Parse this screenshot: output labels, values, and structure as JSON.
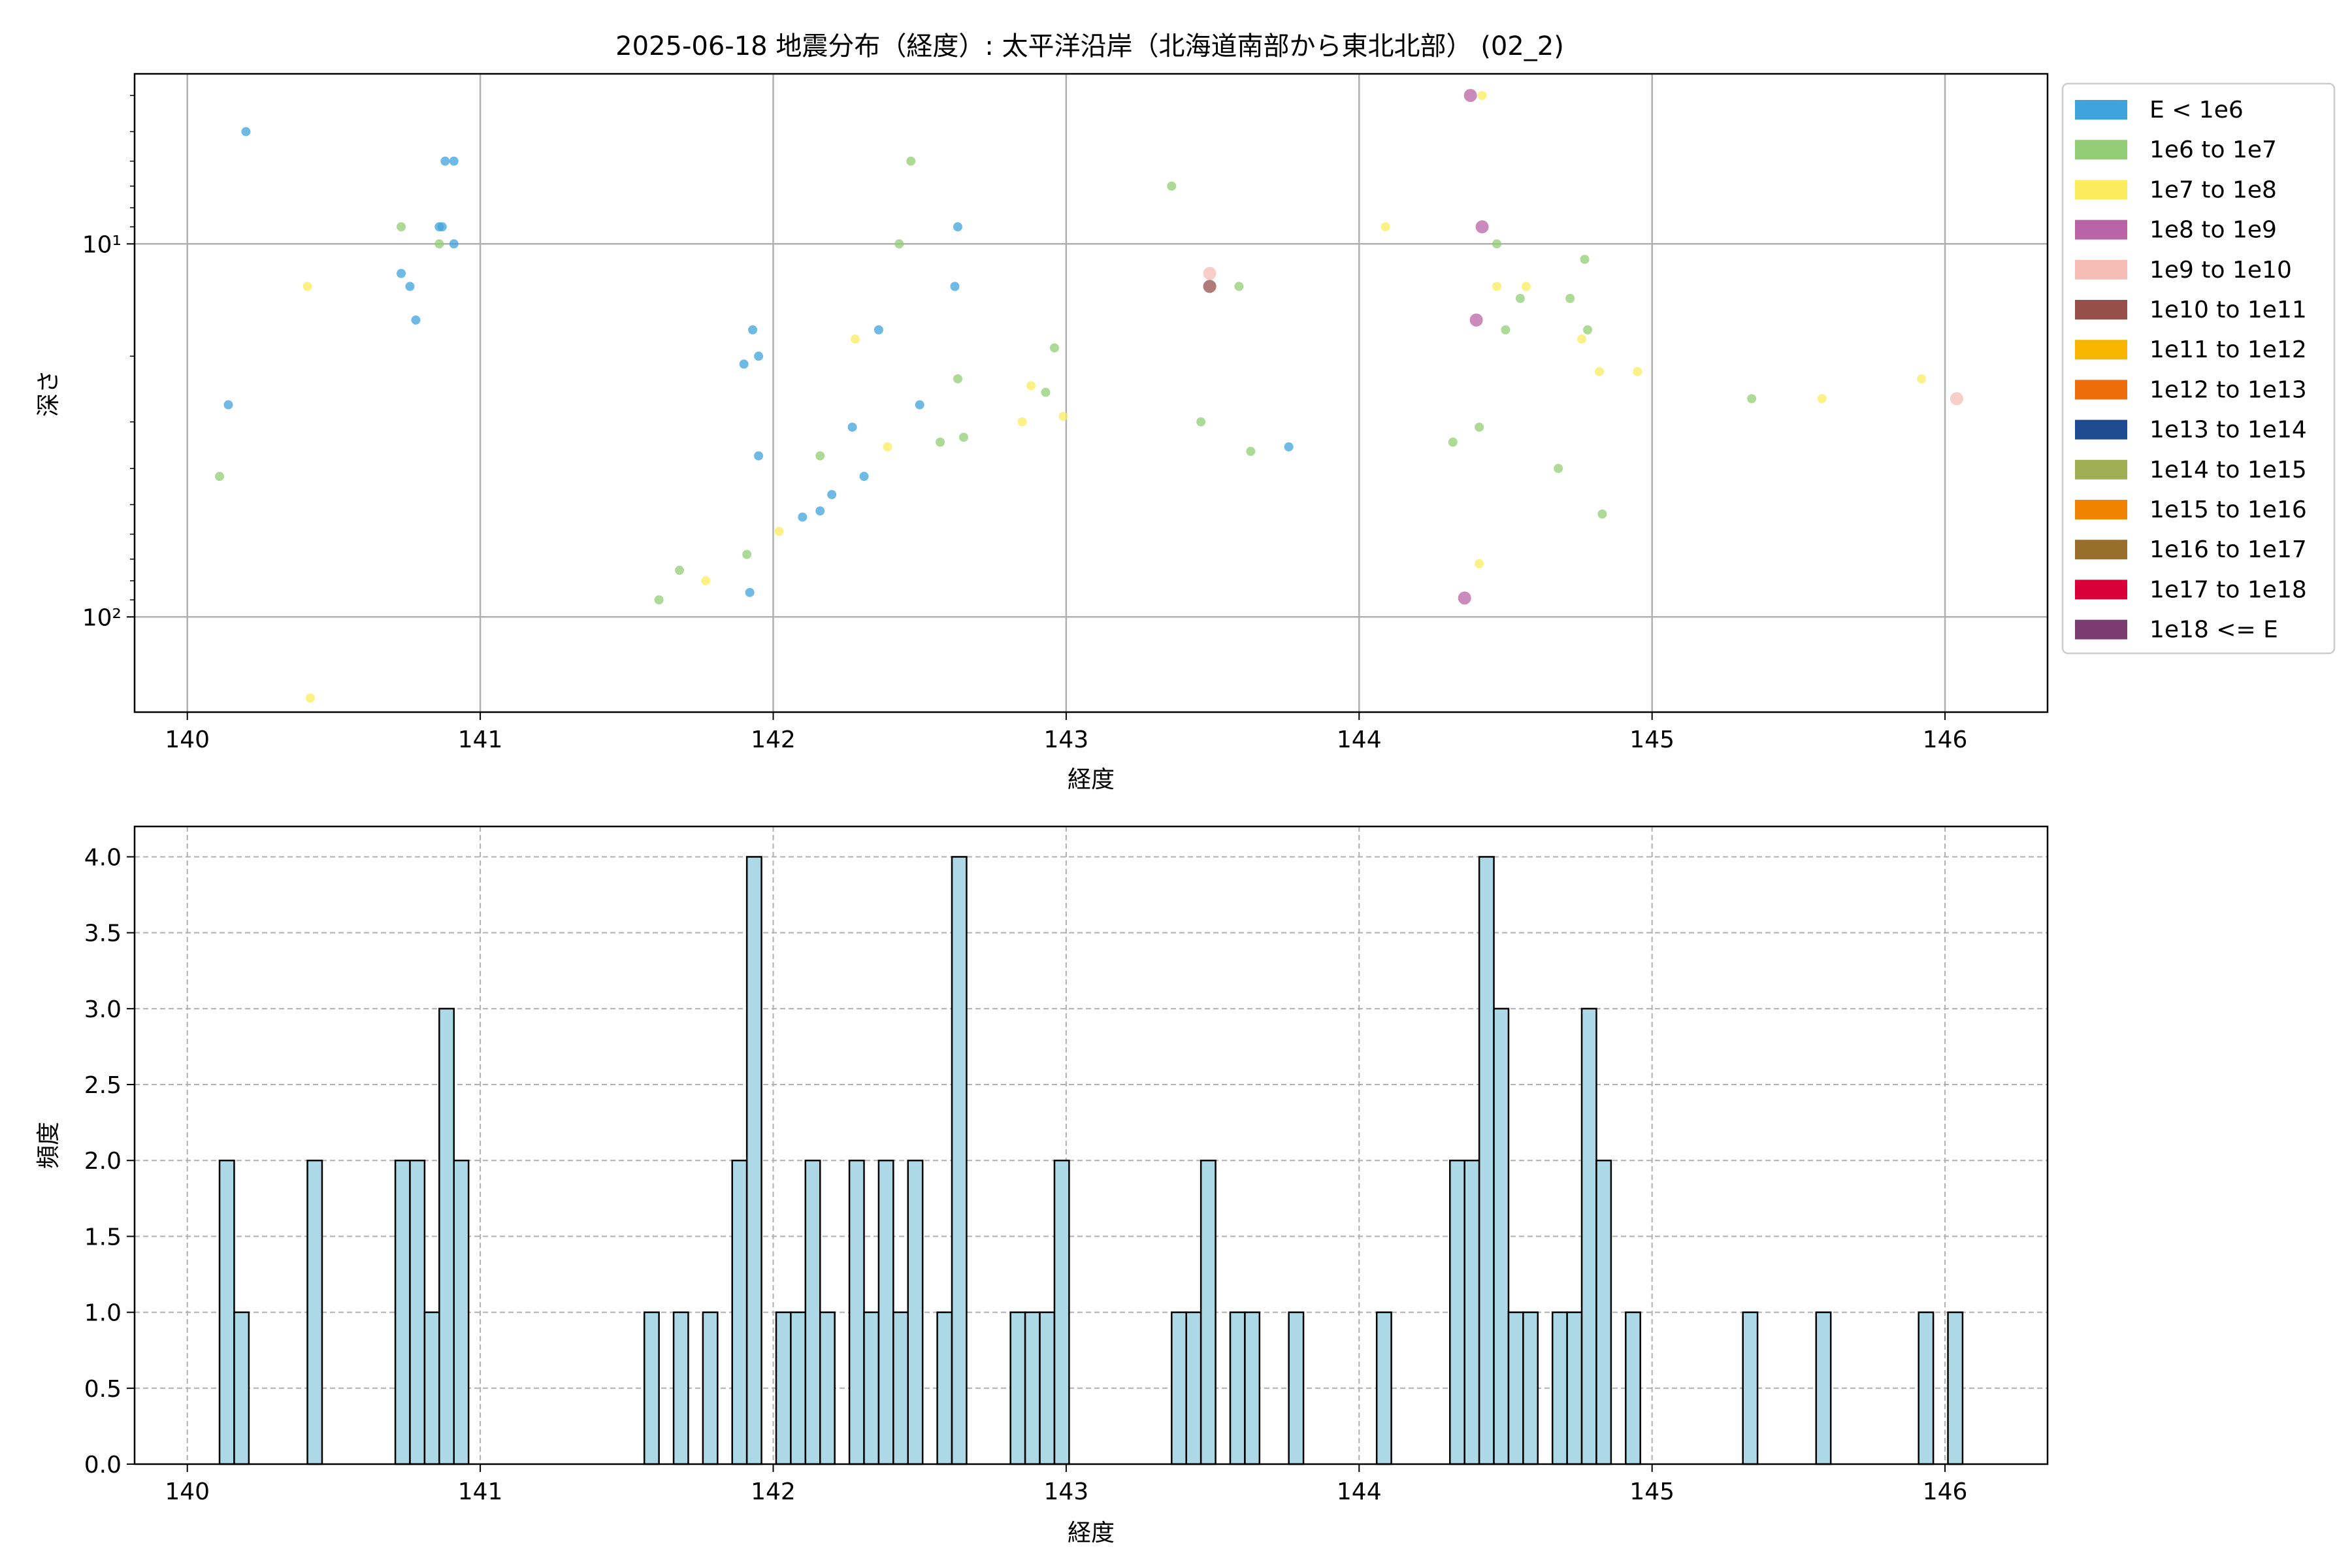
{
  "figure": {
    "title": "2025-06-18 地震分布（経度）: 太平洋沿岸（北海道南部から東北北部） (02_2)"
  },
  "chart_data": [
    {
      "type": "scatter",
      "xlabel": "経度",
      "ylabel": "深さ",
      "xlim": [
        139.82,
        146.35
      ],
      "ylim_log": [
        180,
        3.5
      ],
      "y_scale": "log",
      "y_inverted": true,
      "x_ticks": [
        140,
        141,
        142,
        143,
        144,
        145,
        146
      ],
      "x_tick_labels": [
        "140",
        "141",
        "142",
        "143",
        "144",
        "145",
        "146"
      ],
      "y_major_ticks": [
        10,
        100
      ],
      "y_tick_labels": [
        "10¹",
        "10²"
      ],
      "grid": true,
      "legend_position": "outside-right",
      "legend": [
        {
          "label": "E < 1e6",
          "color": "#3fa3dc"
        },
        {
          "label": "1e6 to 1e7",
          "color": "#93cd76"
        },
        {
          "label": "1e7 to 1e8",
          "color": "#fbec5d"
        },
        {
          "label": "1e8 to 1e9",
          "color": "#b864a6"
        },
        {
          "label": "1e9 to 1e10",
          "color": "#f5bdb5"
        },
        {
          "label": "1e10 to 1e11",
          "color": "#964f4b"
        },
        {
          "label": "1e11 to 1e12",
          "color": "#f8b500"
        },
        {
          "label": "1e12 to 1e13",
          "color": "#ed6d0a"
        },
        {
          "label": "1e13 to 1e14",
          "color": "#1d4a91"
        },
        {
          "label": "1e14 to 1e15",
          "color": "#9fae52"
        },
        {
          "label": "1e15 to 1e16",
          "color": "#f08300"
        },
        {
          "label": "1e16 to 1e17",
          "color": "#976e2c"
        },
        {
          "label": "1e17 to 1e18",
          "color": "#d9003a"
        },
        {
          "label": "1e18 <= E",
          "color": "#7a3c70"
        }
      ],
      "points": [
        {
          "x": 140.2,
          "y": 5.0,
          "c": 0
        },
        {
          "x": 140.14,
          "y": 27,
          "c": 0
        },
        {
          "x": 140.73,
          "y": 12,
          "c": 0
        },
        {
          "x": 140.76,
          "y": 13,
          "c": 0
        },
        {
          "x": 140.78,
          "y": 16,
          "c": 0
        },
        {
          "x": 140.86,
          "y": 9,
          "c": 0
        },
        {
          "x": 140.87,
          "y": 9,
          "c": 0
        },
        {
          "x": 140.88,
          "y": 6,
          "c": 0
        },
        {
          "x": 140.91,
          "y": 6,
          "c": 0
        },
        {
          "x": 140.91,
          "y": 10,
          "c": 0
        },
        {
          "x": 141.9,
          "y": 21,
          "c": 0
        },
        {
          "x": 141.93,
          "y": 17,
          "c": 0
        },
        {
          "x": 141.95,
          "y": 20,
          "c": 0
        },
        {
          "x": 141.95,
          "y": 37,
          "c": 0
        },
        {
          "x": 141.92,
          "y": 86,
          "c": 0
        },
        {
          "x": 142.1,
          "y": 54,
          "c": 0
        },
        {
          "x": 142.16,
          "y": 52,
          "c": 0
        },
        {
          "x": 142.2,
          "y": 47,
          "c": 0
        },
        {
          "x": 142.27,
          "y": 31,
          "c": 0
        },
        {
          "x": 142.31,
          "y": 42,
          "c": 0
        },
        {
          "x": 142.36,
          "y": 17,
          "c": 0
        },
        {
          "x": 142.5,
          "y": 27,
          "c": 0
        },
        {
          "x": 142.62,
          "y": 13,
          "c": 0
        },
        {
          "x": 142.63,
          "y": 9,
          "c": 0
        },
        {
          "x": 143.76,
          "y": 35,
          "c": 0
        },
        {
          "x": 140.11,
          "y": 42,
          "c": 1
        },
        {
          "x": 140.73,
          "y": 9,
          "c": 1
        },
        {
          "x": 140.86,
          "y": 10,
          "c": 1
        },
        {
          "x": 141.61,
          "y": 90,
          "c": 1
        },
        {
          "x": 141.68,
          "y": 75,
          "c": 1
        },
        {
          "x": 141.91,
          "y": 68,
          "c": 1
        },
        {
          "x": 142.16,
          "y": 37,
          "c": 1
        },
        {
          "x": 142.43,
          "y": 10,
          "c": 1
        },
        {
          "x": 142.47,
          "y": 6,
          "c": 1
        },
        {
          "x": 142.57,
          "y": 34,
          "c": 1
        },
        {
          "x": 142.63,
          "y": 23,
          "c": 1
        },
        {
          "x": 142.65,
          "y": 33,
          "c": 1
        },
        {
          "x": 142.93,
          "y": 25,
          "c": 1
        },
        {
          "x": 142.96,
          "y": 19,
          "c": 1
        },
        {
          "x": 143.36,
          "y": 7,
          "c": 1
        },
        {
          "x": 143.46,
          "y": 30,
          "c": 1
        },
        {
          "x": 143.59,
          "y": 13,
          "c": 1
        },
        {
          "x": 143.63,
          "y": 36,
          "c": 1
        },
        {
          "x": 144.32,
          "y": 34,
          "c": 1
        },
        {
          "x": 144.41,
          "y": 31,
          "c": 1
        },
        {
          "x": 144.47,
          "y": 10,
          "c": 1
        },
        {
          "x": 144.5,
          "y": 17,
          "c": 1
        },
        {
          "x": 144.55,
          "y": 14,
          "c": 1
        },
        {
          "x": 144.68,
          "y": 40,
          "c": 1
        },
        {
          "x": 144.72,
          "y": 14,
          "c": 1
        },
        {
          "x": 144.77,
          "y": 11,
          "c": 1
        },
        {
          "x": 144.78,
          "y": 17,
          "c": 1
        },
        {
          "x": 144.83,
          "y": 53,
          "c": 1
        },
        {
          "x": 145.34,
          "y": 26,
          "c": 1
        },
        {
          "x": 140.41,
          "y": 13,
          "c": 2
        },
        {
          "x": 140.42,
          "y": 165,
          "c": 2
        },
        {
          "x": 141.77,
          "y": 80,
          "c": 2
        },
        {
          "x": 142.02,
          "y": 59,
          "c": 2
        },
        {
          "x": 142.28,
          "y": 18,
          "c": 2
        },
        {
          "x": 142.39,
          "y": 35,
          "c": 2
        },
        {
          "x": 142.85,
          "y": 30,
          "c": 2
        },
        {
          "x": 142.88,
          "y": 24,
          "c": 2
        },
        {
          "x": 142.99,
          "y": 29,
          "c": 2
        },
        {
          "x": 144.09,
          "y": 9,
          "c": 2
        },
        {
          "x": 144.42,
          "y": 4.0,
          "c": 2
        },
        {
          "x": 144.41,
          "y": 72,
          "c": 2
        },
        {
          "x": 144.47,
          "y": 13,
          "c": 2
        },
        {
          "x": 144.57,
          "y": 13,
          "c": 2
        },
        {
          "x": 144.76,
          "y": 18,
          "c": 2
        },
        {
          "x": 144.82,
          "y": 22,
          "c": 2
        },
        {
          "x": 144.95,
          "y": 22,
          "c": 2
        },
        {
          "x": 145.58,
          "y": 26,
          "c": 2
        },
        {
          "x": 145.92,
          "y": 23,
          "c": 2
        },
        {
          "x": 144.38,
          "y": 4.0,
          "c": 3
        },
        {
          "x": 144.42,
          "y": 9,
          "c": 3
        },
        {
          "x": 144.4,
          "y": 16,
          "c": 3
        },
        {
          "x": 144.36,
          "y": 89,
          "c": 3
        },
        {
          "x": 143.49,
          "y": 12,
          "c": 4
        },
        {
          "x": 146.04,
          "y": 26,
          "c": 4
        },
        {
          "x": 143.49,
          "y": 13,
          "c": 5
        }
      ]
    },
    {
      "type": "bar",
      "xlabel": "経度",
      "ylabel": "頻度",
      "xlim": [
        139.82,
        146.35
      ],
      "ylim": [
        0,
        4.2
      ],
      "x_ticks": [
        140,
        141,
        142,
        143,
        144,
        145,
        146
      ],
      "x_tick_labels": [
        "140",
        "141",
        "142",
        "143",
        "144",
        "145",
        "146"
      ],
      "y_ticks": [
        0,
        0.5,
        1,
        1.5,
        2,
        2.5,
        3,
        3.5,
        4
      ],
      "y_tick_labels": [
        "0.0",
        "0.5",
        "1.0",
        "1.5",
        "2.0",
        "2.5",
        "3.0",
        "3.5",
        "4.0"
      ],
      "grid": true,
      "bar_color": "#add8e6",
      "bin_width": 0.05,
      "bins": [
        {
          "x": 140.11,
          "v": 2
        },
        {
          "x": 140.16,
          "v": 1
        },
        {
          "x": 140.41,
          "v": 2
        },
        {
          "x": 140.71,
          "v": 2
        },
        {
          "x": 140.76,
          "v": 2
        },
        {
          "x": 140.81,
          "v": 1
        },
        {
          "x": 140.86,
          "v": 3
        },
        {
          "x": 140.91,
          "v": 2
        },
        {
          "x": 141.56,
          "v": 1
        },
        {
          "x": 141.66,
          "v": 1
        },
        {
          "x": 141.76,
          "v": 1
        },
        {
          "x": 141.86,
          "v": 2
        },
        {
          "x": 141.91,
          "v": 4
        },
        {
          "x": 142.01,
          "v": 1
        },
        {
          "x": 142.06,
          "v": 1
        },
        {
          "x": 142.11,
          "v": 2
        },
        {
          "x": 142.16,
          "v": 1
        },
        {
          "x": 142.26,
          "v": 2
        },
        {
          "x": 142.31,
          "v": 1
        },
        {
          "x": 142.36,
          "v": 2
        },
        {
          "x": 142.41,
          "v": 1
        },
        {
          "x": 142.46,
          "v": 2
        },
        {
          "x": 142.56,
          "v": 1
        },
        {
          "x": 142.61,
          "v": 4
        },
        {
          "x": 142.81,
          "v": 1
        },
        {
          "x": 142.86,
          "v": 1
        },
        {
          "x": 142.91,
          "v": 1
        },
        {
          "x": 142.96,
          "v": 2
        },
        {
          "x": 143.36,
          "v": 1
        },
        {
          "x": 143.41,
          "v": 1
        },
        {
          "x": 143.46,
          "v": 2
        },
        {
          "x": 143.56,
          "v": 1
        },
        {
          "x": 143.61,
          "v": 1
        },
        {
          "x": 143.76,
          "v": 1
        },
        {
          "x": 144.06,
          "v": 1
        },
        {
          "x": 144.31,
          "v": 2
        },
        {
          "x": 144.36,
          "v": 2
        },
        {
          "x": 144.41,
          "v": 4
        },
        {
          "x": 144.46,
          "v": 3
        },
        {
          "x": 144.51,
          "v": 1
        },
        {
          "x": 144.56,
          "v": 1
        },
        {
          "x": 144.66,
          "v": 1
        },
        {
          "x": 144.71,
          "v": 1
        },
        {
          "x": 144.76,
          "v": 3
        },
        {
          "x": 144.81,
          "v": 2
        },
        {
          "x": 144.91,
          "v": 1
        },
        {
          "x": 145.31,
          "v": 1
        },
        {
          "x": 145.56,
          "v": 1
        },
        {
          "x": 145.91,
          "v": 1
        },
        {
          "x": 146.01,
          "v": 1
        }
      ]
    }
  ]
}
